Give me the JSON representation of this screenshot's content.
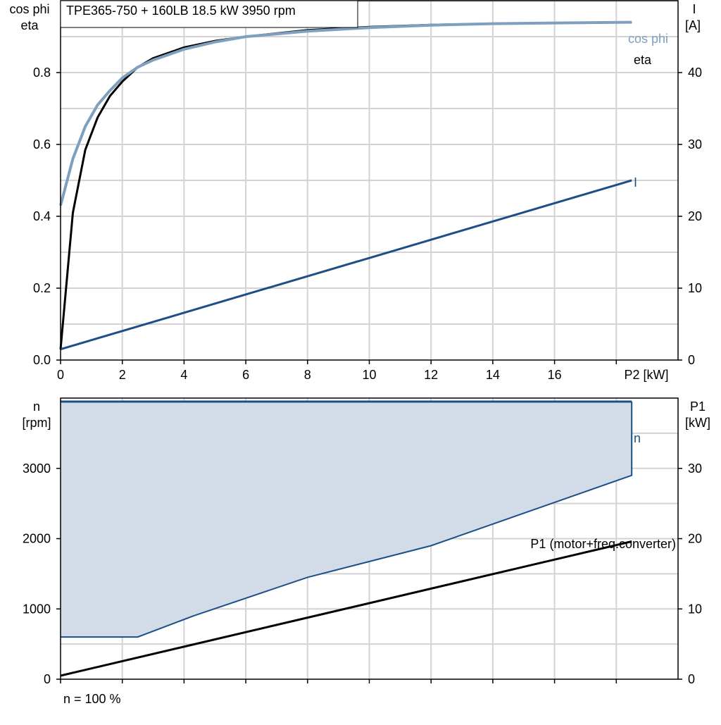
{
  "top_chart_title": "TPE365-750 + 160LB   18.5 kW   3950 rpm",
  "top_left_axis_label": [
    "cos phi",
    "eta"
  ],
  "top_right_axis_label": [
    "I",
    "[A]"
  ],
  "top_x_axis_label": "P2 [kW]",
  "bottom_left_axis_label": [
    "n",
    "[rpm]"
  ],
  "bottom_right_axis_label": [
    "P1",
    "[kW]"
  ],
  "footer_note": "n = 100 %",
  "colors": {
    "cos_phi": "#7f9fbf",
    "eta": "#000000",
    "current": "#1c4f86",
    "speed_fill": "#d1dce8",
    "speed_line": "#1c4f86",
    "p1": "#000000"
  },
  "chart_data": [
    {
      "type": "line",
      "title": "TPE365-750 + 160LB   18.5 kW   3950 rpm",
      "xlabel": "P2 [kW]",
      "ylabel": "cos phi / eta",
      "y2label": "I [A]",
      "xlim": [
        0,
        20
      ],
      "ylim": [
        0,
        1.0
      ],
      "y2lim": [
        0,
        50
      ],
      "x_ticks": [
        "0",
        "2",
        "4",
        "6",
        "8",
        "10",
        "12",
        "14",
        "16"
      ],
      "y_ticks": [
        "0.0",
        "0.2",
        "0.4",
        "0.6",
        "0.8"
      ],
      "y2_ticks": [
        "0",
        "10",
        "20",
        "30",
        "40"
      ],
      "grid": true,
      "series": [
        {
          "name": "cos phi",
          "axis": "left",
          "x": [
            0,
            0.4,
            0.8,
            1.2,
            1.6,
            2,
            2.5,
            3,
            4,
            5,
            6,
            8,
            10,
            12,
            14,
            16,
            18.5
          ],
          "values": [
            0.43,
            0.56,
            0.65,
            0.71,
            0.75,
            0.785,
            0.815,
            0.835,
            0.865,
            0.885,
            0.9,
            0.915,
            0.925,
            0.932,
            0.936,
            0.938,
            0.94
          ]
        },
        {
          "name": "eta",
          "axis": "left",
          "x": [
            0,
            0.4,
            0.8,
            1.2,
            1.6,
            2,
            2.5,
            3,
            4,
            5,
            6,
            8,
            10,
            12,
            14,
            16,
            18.5
          ],
          "values": [
            0.03,
            0.41,
            0.585,
            0.675,
            0.735,
            0.775,
            0.815,
            0.84,
            0.87,
            0.888,
            0.9,
            0.918,
            0.927,
            0.933,
            0.936,
            0.938,
            0.94
          ]
        },
        {
          "name": "I",
          "axis": "right",
          "x": [
            0,
            18.5
          ],
          "values": [
            1.5,
            25
          ]
        }
      ]
    },
    {
      "type": "area",
      "xlim": [
        0,
        20
      ],
      "ylabel": "n [rpm]",
      "y2label": "P1 [kW]",
      "ylim": [
        0,
        4000
      ],
      "y2lim": [
        0,
        40
      ],
      "y_ticks": [
        "0",
        "1000",
        "2000",
        "3000"
      ],
      "y2_ticks": [
        "0",
        "10",
        "20",
        "30"
      ],
      "grid": true,
      "series": [
        {
          "name": "n",
          "axis": "left",
          "x": [
            0,
            18.5
          ],
          "values": [
            3950,
            3950
          ]
        },
        {
          "name": "n",
          "axis": "left",
          "role": "lower_bound",
          "x": [
            0,
            2.5,
            4.3,
            8,
            12,
            18.5
          ],
          "values": [
            600,
            600,
            900,
            1450,
            1900,
            2900
          ]
        },
        {
          "name": "P1 (motor+freq.converter)",
          "axis": "right",
          "x": [
            0,
            18.5
          ],
          "values": [
            0.5,
            19.6
          ]
        }
      ]
    }
  ]
}
